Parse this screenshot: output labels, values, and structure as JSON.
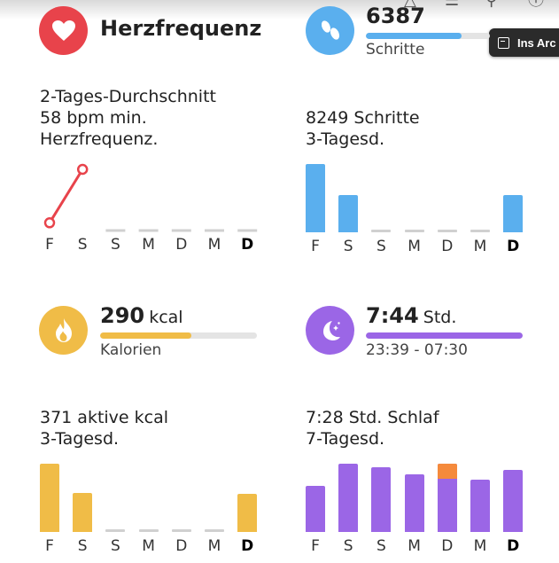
{
  "colors": {
    "heart": "#e8434b",
    "steps": "#5aafee",
    "calories": "#f0bc47",
    "sleep": "#9b66e6",
    "sleep_awake": "#f58a3c",
    "empty": "#d0d0d0"
  },
  "toolbar": {
    "archive_label": "Ins Arc",
    "icons": [
      "share-icon",
      "settings-sliders-icon",
      "search-icon",
      "info-icon"
    ]
  },
  "heart": {
    "icon": "heart-icon",
    "title": "Herzfrequenz",
    "desc_line1": "2-Tages-Durchschnitt",
    "desc_line2": "58 bpm min.",
    "desc_line3": "Herzfrequenz."
  },
  "steps": {
    "icon": "footprints-icon",
    "value": "6387",
    "label": "Schritte",
    "progress": 0.77,
    "desc_line1": "8249 Schritte",
    "desc_line2": "3-Tagesd."
  },
  "calories": {
    "icon": "flame-icon",
    "value": "290",
    "unit": "kcal",
    "label": "Kalorien",
    "progress": 0.58,
    "desc_line1": "371 aktive kcal",
    "desc_line2": "3-Tagesd."
  },
  "sleep": {
    "icon": "moon-stars-icon",
    "value": "7:44",
    "unit": "Std.",
    "range": "23:39 - 07:30",
    "progress": 1.0,
    "desc_line1": "7:28 Std. Schlaf",
    "desc_line2": "7-Tagesd."
  },
  "days": [
    "F",
    "S",
    "S",
    "M",
    "D",
    "M",
    "D"
  ],
  "chart_data": [
    {
      "type": "line",
      "name": "heart",
      "categories": [
        "F",
        "S",
        "S",
        "M",
        "D",
        "M",
        "D"
      ],
      "values": [
        0.1,
        1.0,
        null,
        null,
        null,
        null,
        null
      ],
      "ylim": [
        0,
        1
      ]
    },
    {
      "type": "bar",
      "name": "steps",
      "categories": [
        "F",
        "S",
        "S",
        "M",
        "D",
        "M",
        "D"
      ],
      "values": [
        1.0,
        0.54,
        0,
        0,
        0,
        0,
        0.55
      ],
      "ylim": [
        0,
        1
      ]
    },
    {
      "type": "bar",
      "name": "calories",
      "categories": [
        "F",
        "S",
        "S",
        "M",
        "D",
        "M",
        "D"
      ],
      "values": [
        1.0,
        0.57,
        0,
        0,
        0,
        0,
        0.56
      ],
      "ylim": [
        0,
        1
      ]
    },
    {
      "type": "bar",
      "name": "sleep",
      "categories": [
        "F",
        "S",
        "S",
        "M",
        "D",
        "M",
        "D"
      ],
      "values": [
        0.68,
        1.0,
        0.95,
        0.85,
        1.0,
        0.77,
        0.91
      ],
      "awake": [
        0,
        0,
        0,
        0,
        0.22,
        0,
        0
      ],
      "ylim": [
        0,
        1
      ]
    }
  ]
}
